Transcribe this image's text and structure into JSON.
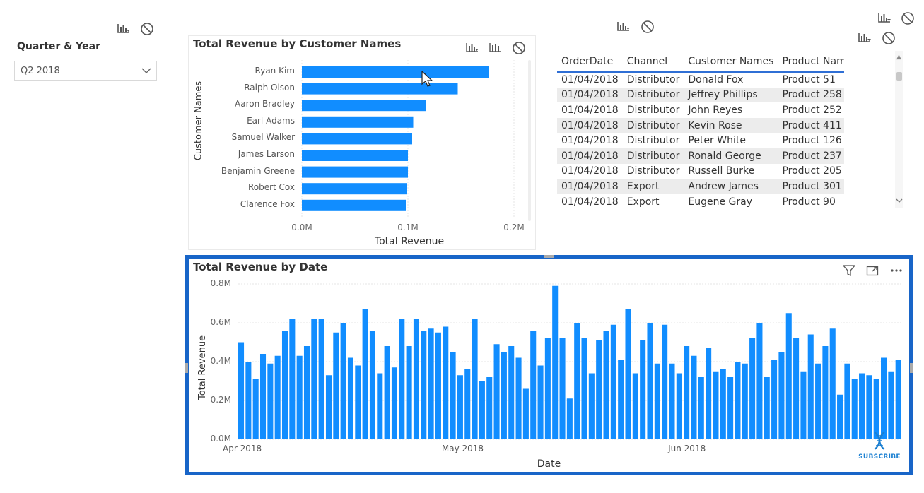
{
  "slicer": {
    "title": "Quarter & Year",
    "value": "Q2 2018"
  },
  "colors": {
    "bar": "#118DFF",
    "header_rule": "#2F6FD5",
    "focus_border": "#1865C8",
    "alt_row": "#ECECEC"
  },
  "icons": [
    "drill-filter-icon",
    "no-filter-icon",
    "bar-chart-icon",
    "funnel-icon",
    "focus-mode-icon",
    "more-options-icon",
    "chevron-down-icon",
    "dna-icon"
  ],
  "bar_chart": {
    "title": "Total Revenue by Customer Names",
    "xlabel": "Total Revenue",
    "ylabel": "Customer Names",
    "ticks": [
      "0.0M",
      "0.1M",
      "0.2M"
    ]
  },
  "table": {
    "headers": [
      "OrderDate",
      "Channel",
      "Customer Names",
      "Product Name"
    ],
    "rows": [
      [
        "01/04/2018",
        "Distributor",
        "Donald Fox",
        "Product 51"
      ],
      [
        "01/04/2018",
        "Distributor",
        "Jeffrey Phillips",
        "Product 258"
      ],
      [
        "01/04/2018",
        "Distributor",
        "John Reyes",
        "Product 252"
      ],
      [
        "01/04/2018",
        "Distributor",
        "Kevin Rose",
        "Product 411"
      ],
      [
        "01/04/2018",
        "Distributor",
        "Peter White",
        "Product 126"
      ],
      [
        "01/04/2018",
        "Distributor",
        "Ronald George",
        "Product 237"
      ],
      [
        "01/04/2018",
        "Distributor",
        "Russell Burke",
        "Product 205"
      ],
      [
        "01/04/2018",
        "Export",
        "Andrew James",
        "Product 301"
      ],
      [
        "01/04/2018",
        "Export",
        "Eugene Gray",
        "Product 90"
      ]
    ]
  },
  "date_chart": {
    "title": "Total Revenue by Date",
    "xlabel": "Date",
    "ylabel": "Total Revenue",
    "yticks": [
      "0.0M",
      "0.2M",
      "0.4M",
      "0.6M",
      "0.8M"
    ],
    "xticks": [
      "Apr 2018",
      "May 2018",
      "Jun 2018"
    ]
  },
  "subscribe_label": "SUBSCRIBE",
  "chart_data": [
    {
      "type": "bar",
      "orientation": "horizontal",
      "title": "Total Revenue by Customer Names",
      "xlabel": "Total Revenue",
      "ylabel": "Customer Names",
      "xlim": [
        0,
        0.2
      ],
      "categories": [
        "Ryan Kim",
        "Ralph Olson",
        "Aaron Bradley",
        "Earl Adams",
        "Samuel Walker",
        "James Larson",
        "Benjamin Greene",
        "Robert Cox",
        "Clarence Fox"
      ],
      "values": [
        0.176,
        0.147,
        0.117,
        0.105,
        0.104,
        0.1,
        0.1,
        0.099,
        0.098
      ]
    },
    {
      "type": "bar",
      "title": "Total Revenue by Date",
      "xlabel": "Date",
      "ylabel": "Total Revenue",
      "ylim": [
        0,
        0.8
      ],
      "x_start": "Apr 2018",
      "values": [
        0.5,
        0.4,
        0.31,
        0.44,
        0.39,
        0.43,
        0.56,
        0.62,
        0.43,
        0.48,
        0.62,
        0.62,
        0.33,
        0.55,
        0.6,
        0.42,
        0.38,
        0.67,
        0.56,
        0.34,
        0.48,
        0.37,
        0.62,
        0.48,
        0.62,
        0.56,
        0.57,
        0.55,
        0.58,
        0.45,
        0.33,
        0.36,
        0.62,
        0.3,
        0.32,
        0.49,
        0.45,
        0.48,
        0.42,
        0.26,
        0.56,
        0.38,
        0.52,
        0.79,
        0.52,
        0.21,
        0.6,
        0.52,
        0.34,
        0.51,
        0.56,
        0.59,
        0.41,
        0.67,
        0.34,
        0.51,
        0.6,
        0.39,
        0.59,
        0.39,
        0.34,
        0.48,
        0.43,
        0.32,
        0.47,
        0.35,
        0.36,
        0.32,
        0.4,
        0.39,
        0.52,
        0.6,
        0.32,
        0.41,
        0.45,
        0.65,
        0.52,
        0.35,
        0.54,
        0.39,
        0.48,
        0.57,
        0.23,
        0.39,
        0.31,
        0.34,
        0.33,
        0.31,
        0.42,
        0.35,
        0.41
      ]
    }
  ]
}
